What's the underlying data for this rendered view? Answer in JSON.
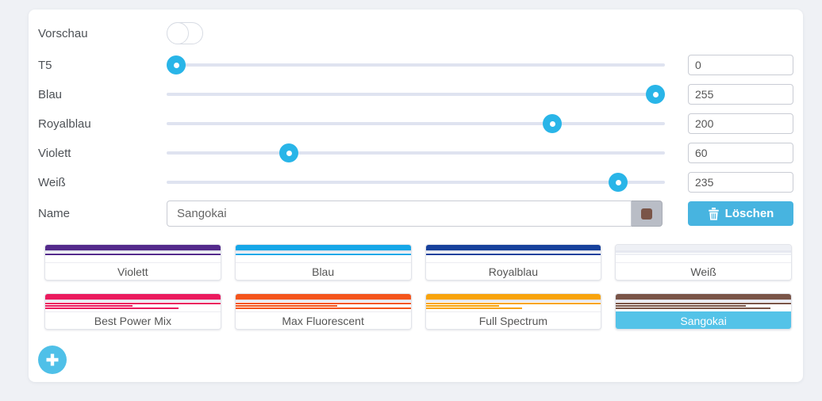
{
  "preview_row": {
    "label": "Vorschau",
    "state": "off"
  },
  "sliders": [
    {
      "label": "T5",
      "value": 0,
      "max": 255
    },
    {
      "label": "Blau",
      "value": 255,
      "max": 255
    },
    {
      "label": "Royalblau",
      "value": 200,
      "max": 255
    },
    {
      "label": "Violett",
      "value": 60,
      "max": 255
    },
    {
      "label": "Weiß",
      "value": 235,
      "max": 255
    }
  ],
  "name_row": {
    "label": "Name",
    "value": "Sangokai",
    "swatch_color": "#7a5548",
    "delete_button": {
      "icon": "trash-icon",
      "label": "Löschen"
    }
  },
  "presets": [
    {
      "label": "Violett",
      "color": "#542a8c",
      "bars": [
        100
      ],
      "selected": false
    },
    {
      "label": "Blau",
      "color": "#16a7e8",
      "bars": [
        100
      ],
      "selected": false
    },
    {
      "label": "Royalblau",
      "color": "#17419c",
      "bars": [
        100
      ],
      "selected": false
    },
    {
      "label": "Weiß",
      "color": "#eef0f5",
      "bars": [
        100
      ],
      "selected": false
    },
    {
      "label": "Best Power Mix",
      "color": "#eb1a5e",
      "bars": [
        100,
        50,
        76
      ],
      "selected": false
    },
    {
      "label": "Max Fluorescent",
      "color": "#f4551c",
      "bars": [
        100,
        58,
        100
      ],
      "selected": false
    },
    {
      "label": "Full Spectrum",
      "color": "#f8a40c",
      "bars": [
        100,
        42,
        55
      ],
      "selected": false
    },
    {
      "label": "Sangokai",
      "color": "#7a5548",
      "bars": [
        100,
        74,
        88
      ],
      "selected": true
    }
  ],
  "add_button": {
    "icon": "plus-icon"
  },
  "colors": {
    "page_bg": "#eff1f5",
    "accent": "#4fc0e8",
    "slider_handle": "#29b5e8",
    "slider_track": "#dfe3f0",
    "delete_bg": "#47b4e0",
    "selected_bg": "#54c3e8",
    "stripe_sep": "#e6e8f0"
  }
}
